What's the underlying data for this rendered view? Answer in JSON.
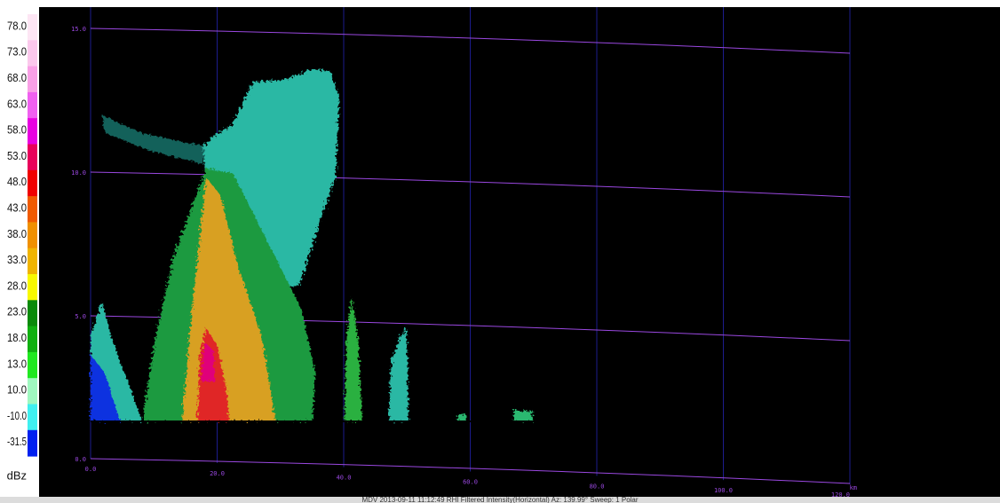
{
  "colorbar": {
    "entries": [
      {
        "label": "78.0",
        "color": "#fde6f4"
      },
      {
        "label": "73.0",
        "color": "#fbc8ec"
      },
      {
        "label": "68.0",
        "color": "#f9a0e6"
      },
      {
        "label": "63.0",
        "color": "#f060f0"
      },
      {
        "label": "58.0",
        "color": "#e800e0"
      },
      {
        "label": "53.0",
        "color": "#e8005a"
      },
      {
        "label": "48.0",
        "color": "#f00000"
      },
      {
        "label": "43.0",
        "color": "#f05a00"
      },
      {
        "label": "38.0",
        "color": "#f09000"
      },
      {
        "label": "33.0",
        "color": "#f0b400"
      },
      {
        "label": "28.0",
        "color": "#f8f800"
      },
      {
        "label": "23.0",
        "color": "#0a8a0a"
      },
      {
        "label": "18.0",
        "color": "#10b010"
      },
      {
        "label": "13.0",
        "color": "#20e820"
      },
      {
        "label": "10.0",
        "color": "#a0f8c0"
      },
      {
        "label": "-10.0",
        "color": "#40f0f0"
      },
      {
        "label": "-31.5",
        "color": "#0020f0"
      }
    ],
    "unit": "dBz"
  },
  "range_axis": {
    "labels": [
      "0.0",
      "20.0",
      "40.0",
      "60.0",
      "80.0",
      "100.0",
      "120.0"
    ],
    "unit": "km"
  },
  "height_axis": {
    "labels": [
      "15.0",
      "10.0",
      "5.0",
      "0.0"
    ]
  },
  "caption": "MDV 2013-09-11 11:12:49 RHI Filtered Intensity(Horizontal)  Az: 139.99°  Sweep: 1 Polar"
}
